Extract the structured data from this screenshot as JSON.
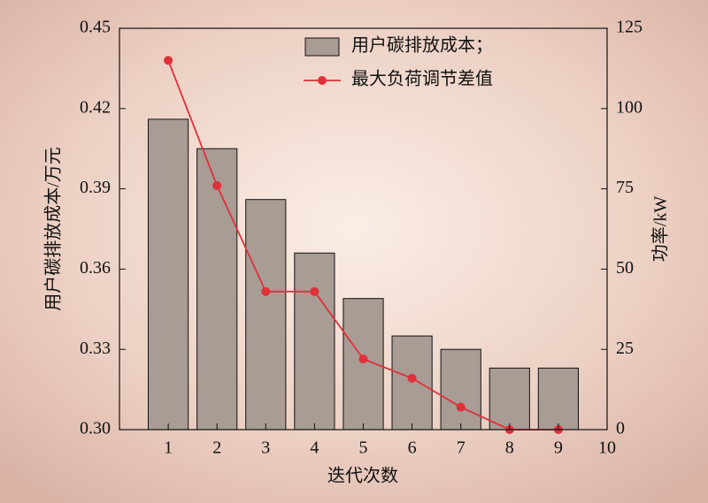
{
  "chart_data": {
    "type": "bar_line",
    "xlabel": "迭代次数",
    "ylabel": "用户碳排放成本/万元",
    "y2label": "功率/kW",
    "x": [
      1,
      2,
      3,
      4,
      5,
      6,
      7,
      8,
      9
    ],
    "series": [
      {
        "name": "用户碳排放成本；",
        "type": "bar",
        "color": "#a89c94",
        "axis": "y",
        "values": [
          0.416,
          0.405,
          0.386,
          0.366,
          0.349,
          0.335,
          0.33,
          0.323,
          0.323
        ]
      },
      {
        "name": "最大负荷调节差值",
        "type": "line",
        "color": "#e0303a",
        "axis": "y2",
        "values": [
          115,
          76,
          43,
          43,
          22,
          16,
          7,
          0,
          0
        ]
      }
    ],
    "xlim": [
      0,
      10
    ],
    "xticks": [
      1,
      2,
      3,
      4,
      5,
      6,
      7,
      8,
      9,
      10
    ],
    "ylim": [
      0.3,
      0.45
    ],
    "yticks": [
      {
        "value": 0.3,
        "label": "0.30"
      },
      0.33,
      0.36,
      0.39,
      0.42,
      0.45
    ],
    "y2lim": [
      0,
      125
    ],
    "y2ticks": [
      0,
      25,
      50,
      75,
      100,
      125
    ],
    "legend": "upper right"
  }
}
